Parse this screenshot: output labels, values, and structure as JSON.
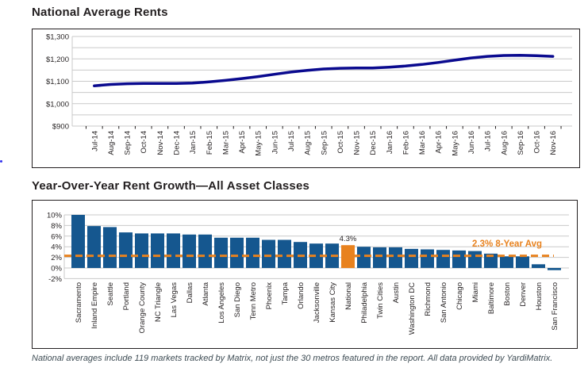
{
  "note": "National averages include 119 markets tracked by Matrix, not just the 30 metros featured in the report. All data provided by YardiMatrix.",
  "colors": {
    "line_navy": "#0a0a8f",
    "bar_blue": "#15578f",
    "accent_orange": "#e8821e",
    "gridline": "#c9c9c9",
    "text_dark": "#231f20",
    "note_text": "#3e4c54"
  },
  "chart_data": [
    {
      "type": "line",
      "title": "National Average Rents",
      "x": [
        "Jul-14",
        "Aug-14",
        "Sep-14",
        "Oct-14",
        "Nov-14",
        "Dec-14",
        "Jan-15",
        "Feb-15",
        "Mar-15",
        "Apr-15",
        "May-15",
        "Jun-15",
        "Jul-15",
        "Aug-15",
        "Sep-15",
        "Oct-15",
        "Nov-15",
        "Dec-15",
        "Jan-16",
        "Feb-16",
        "Mar-16",
        "Apr-16",
        "May-16",
        "Jun-16",
        "Jul-16",
        "Aug-16",
        "Sep-16",
        "Oct-16",
        "Nov-16"
      ],
      "values": [
        1080,
        1086,
        1089,
        1090,
        1090,
        1090,
        1092,
        1097,
        1104,
        1112,
        1121,
        1131,
        1141,
        1149,
        1155,
        1158,
        1159,
        1159,
        1163,
        1168,
        1175,
        1184,
        1194,
        1204,
        1211,
        1215,
        1216,
        1214,
        1211
      ],
      "ylim": [
        900,
        1300
      ],
      "ytick_values": [
        1300,
        1200,
        1100,
        1000,
        900
      ],
      "ytick_labels": [
        "$1,300",
        "$1,200",
        "$1,100",
        "$1,000",
        "$900"
      ],
      "minor_grid_step": 50,
      "grid": true,
      "legend": "none"
    },
    {
      "type": "bar",
      "title": "Year-Over-Year Rent Growth—All Asset Classes",
      "categories": [
        "Sacramento",
        "Inland Empire",
        "Seattle",
        "Portland",
        "Orange County",
        "NC Triangle",
        "Las Vegas",
        "Dallas",
        "Atlanta",
        "Los Angeles",
        "San Diego",
        "Tenn Metro",
        "Phoenix",
        "Tampa",
        "Orlando",
        "Jacksonville",
        "Kansas City",
        "National",
        "Philadelphia",
        "Twin Cities",
        "Austin",
        "Washington DC",
        "Richmond",
        "San Antonio",
        "Chicago",
        "Miami",
        "Baltimore",
        "Boston",
        "Denver",
        "Houston",
        "San Francisco"
      ],
      "values": [
        10.0,
        7.9,
        7.7,
        6.7,
        6.5,
        6.5,
        6.5,
        6.3,
        6.3,
        5.7,
        5.7,
        5.7,
        5.3,
        5.3,
        4.9,
        4.6,
        4.6,
        4.3,
        4.0,
        3.9,
        3.9,
        3.6,
        3.5,
        3.4,
        3.3,
        3.2,
        2.7,
        2.2,
        2.2,
        0.7,
        -0.4
      ],
      "highlight_category": "National",
      "highlight_value_label": "4.3%",
      "avg_line": {
        "value": 2.3,
        "label": "2.3% 8-Year Avg"
      },
      "ylim": [
        -2,
        10
      ],
      "ytick_values": [
        10,
        8,
        6,
        4,
        2,
        0,
        -2
      ],
      "ytick_labels": [
        "10%",
        "8%",
        "6%",
        "4%",
        "2%",
        "0%",
        "-2%"
      ],
      "grid": true,
      "legend": "none"
    }
  ]
}
